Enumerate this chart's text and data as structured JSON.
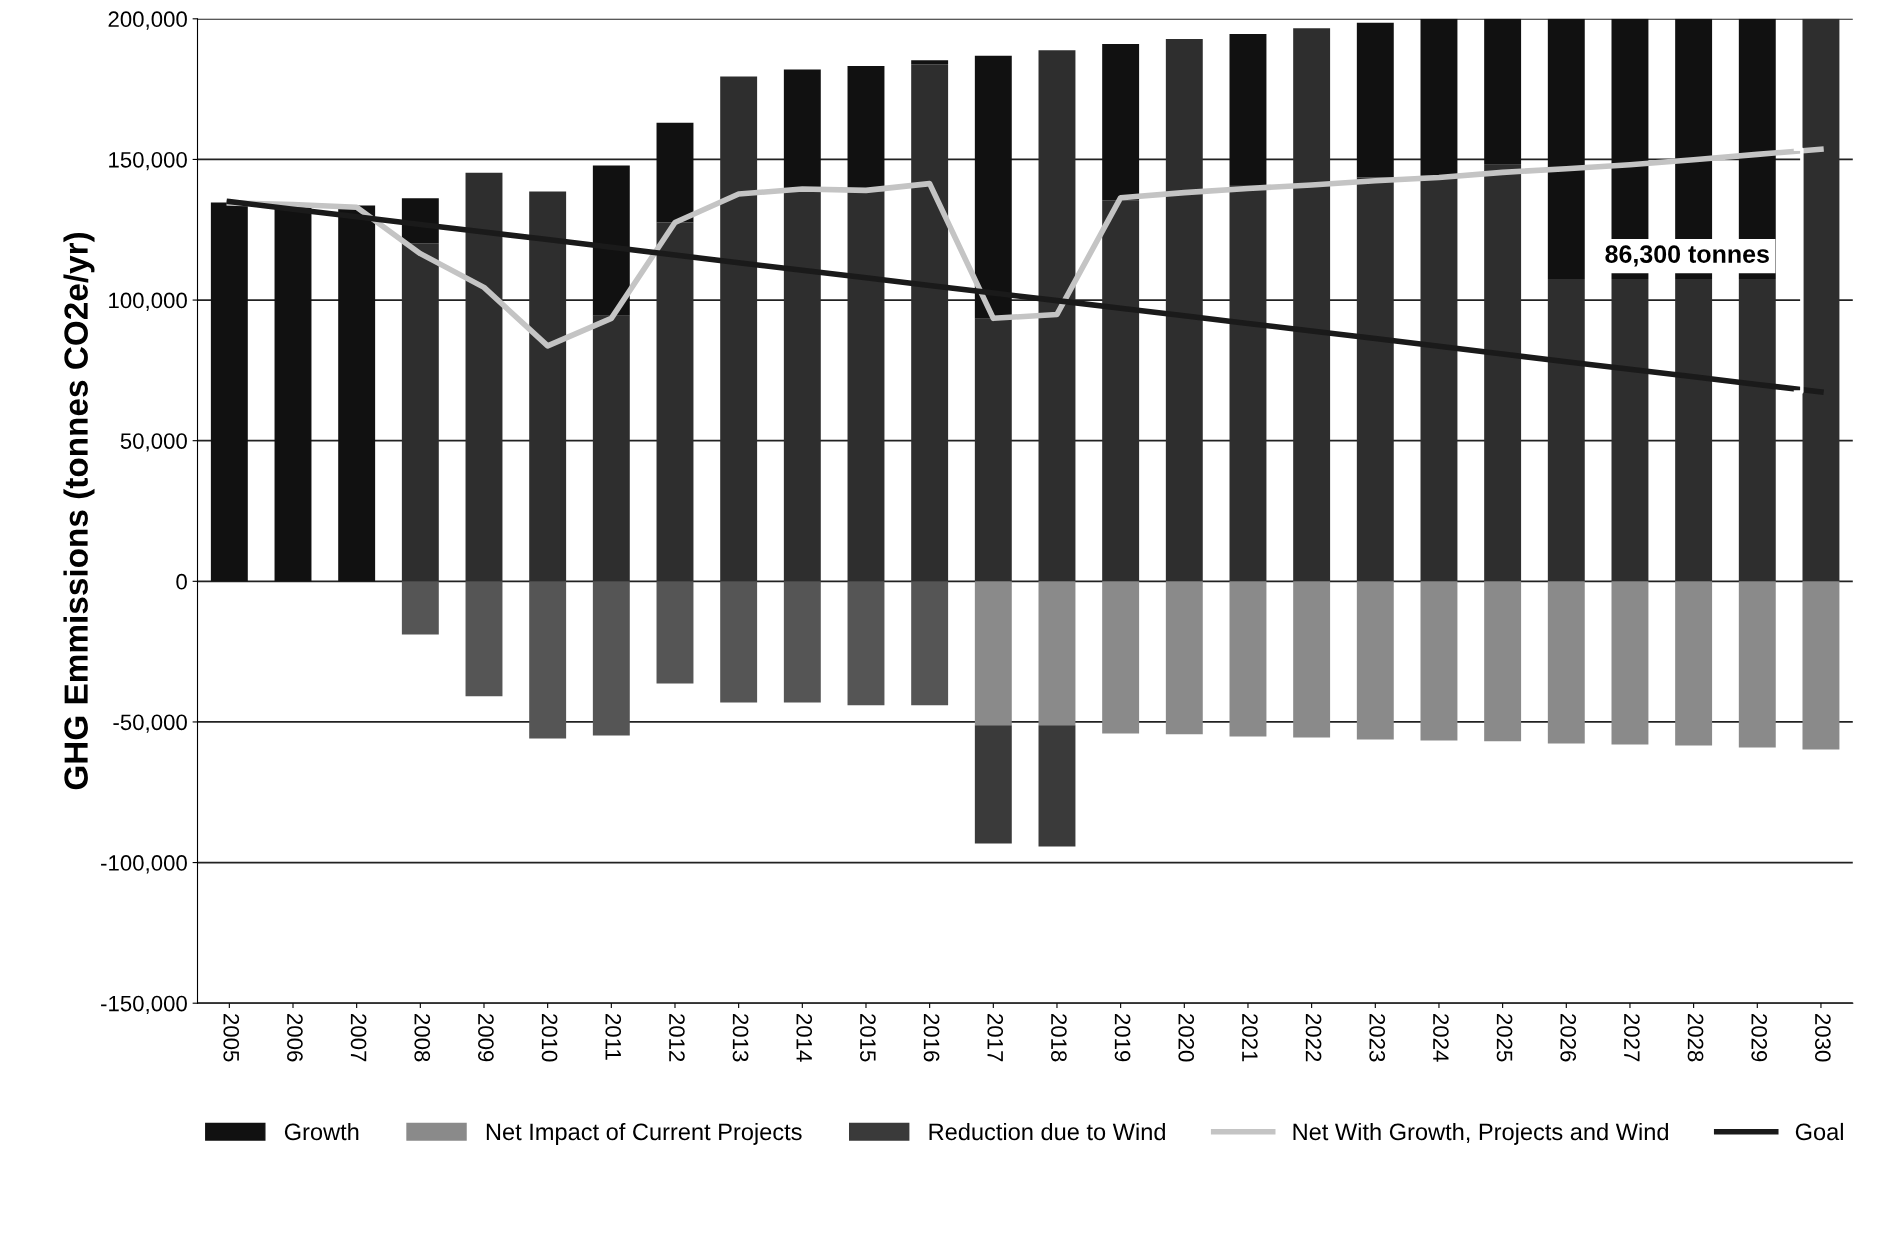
{
  "chart_data": {
    "type": "bar",
    "stacked": true,
    "ylabel": "GHG Emmissions (tonnes CO2e/yr)",
    "categories": [
      "2005",
      "2006",
      "2007",
      "2008",
      "2009",
      "2010",
      "2011",
      "2012",
      "2013",
      "2014",
      "2015",
      "2016",
      "2017",
      "2018",
      "2019",
      "2020",
      "2021",
      "2022",
      "2023",
      "2024",
      "2025",
      "2026",
      "2027",
      "2028",
      "2029",
      "2030"
    ],
    "series": [
      {
        "color": "#2e2e2e",
        "values": [
          0,
          0,
          0,
          120200,
          145300,
          138600,
          94400,
          127600,
          179500,
          138600,
          138600,
          183800,
          93400,
          188800,
          135500,
          192800,
          140900,
          196600,
          143600,
          144500,
          148100,
          107500,
          107500,
          107500,
          107500,
          200000
        ]
      },
      {
        "name": "Growth",
        "color": "#111111",
        "values": [
          134700,
          133600,
          133600,
          16000,
          0,
          0,
          53400,
          35400,
          0,
          43400,
          44600,
          1500,
          93500,
          0,
          55500,
          0,
          53700,
          0,
          55000,
          55500,
          51900,
          92500,
          92500,
          92500,
          92500,
          0
        ]
      },
      {
        "name": "Net Impact of Current Projects",
        "color": "#8a8a8a",
        "colors": [
          "#8a8a8a",
          "#8a8a8a",
          "#8a8a8a",
          "#555555",
          "#555555",
          "#555555",
          "#555555",
          "#555555",
          "#555555",
          "#555555",
          "#555555",
          "#555555",
          "#8a8a8a",
          "#8a8a8a",
          "#8a8a8a",
          "#8a8a8a",
          "#8a8a8a",
          "#8a8a8a",
          "#8a8a8a",
          "#8a8a8a",
          "#8a8a8a",
          "#8a8a8a",
          "#8a8a8a",
          "#8a8a8a",
          "#8a8a8a",
          "#8a8a8a"
        ],
        "values": [
          0,
          0,
          0,
          -18900,
          -40900,
          -55900,
          -54800,
          -36300,
          -43100,
          -43100,
          -44100,
          -44100,
          -51200,
          -51200,
          -54100,
          -54400,
          -55200,
          -55500,
          -56200,
          -56600,
          -56900,
          -57700,
          -58000,
          -58400,
          -59100,
          -59800
        ]
      },
      {
        "name": "Reduction due to Wind",
        "color": "#3a3a3a",
        "values": [
          0,
          0,
          0,
          0,
          0,
          0,
          0,
          0,
          0,
          0,
          0,
          0,
          -42000,
          -43100,
          0,
          0,
          0,
          0,
          0,
          0,
          0,
          0,
          0,
          0,
          0,
          0
        ]
      },
      {
        "name": "Net With Growth, Projects and Wind",
        "type": "line",
        "color": "#c4c4c4",
        "values": [
          134500,
          134000,
          133000,
          116500,
          104500,
          83700,
          93500,
          127600,
          137700,
          139500,
          139000,
          141400,
          93500,
          94900,
          136400,
          138200,
          139700,
          140900,
          142400,
          143600,
          145400,
          146700,
          148100,
          149900,
          151800,
          153600
        ]
      },
      {
        "name": "Goal",
        "type": "line",
        "color": "#1a1a1a",
        "values": [
          135000,
          132300,
          129600,
          126900,
          124200,
          121500,
          118800,
          116000,
          113300,
          110600,
          107900,
          105200,
          102500,
          99800,
          97100,
          94400,
          91700,
          89000,
          86300,
          83600,
          80800,
          78100,
          75400,
          72700,
          70000,
          67300
        ]
      }
    ],
    "ylim": [
      -150000,
      200000
    ],
    "yticks": [
      {
        "value": -150000,
        "label": "-150,000"
      },
      {
        "value": -100000,
        "label": "-100,000"
      },
      {
        "value": -50000,
        "label": "-50,000"
      },
      0,
      {
        "value": 50000,
        "label": "50,000"
      },
      {
        "value": 100000,
        "label": "100,000"
      },
      {
        "value": 150000,
        "label": "150,000"
      },
      {
        "value": 200000,
        "label": "200,000"
      }
    ],
    "grid": "y",
    "legend": "bottom",
    "annotations": [
      "86,300 tonnes"
    ]
  }
}
